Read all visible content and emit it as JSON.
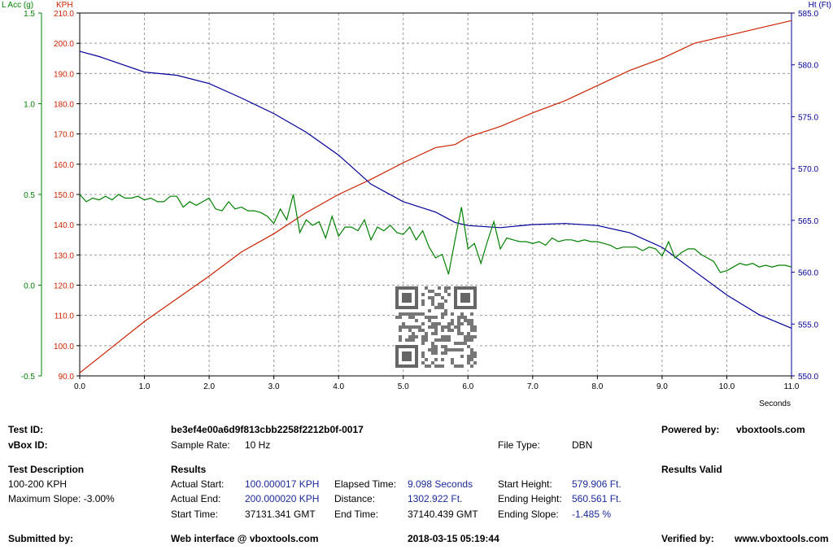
{
  "colors": {
    "speed": "#cc2200",
    "height": "#000099",
    "lacc": "#008000",
    "grid": "#999999"
  },
  "chart_data": {
    "type": "line",
    "x_unit": "Seconds",
    "xlim": [
      0,
      11
    ],
    "x_ticks": [
      "0.0",
      "1.0",
      "2.0",
      "3.0",
      "4.0",
      "5.0",
      "6.0",
      "7.0",
      "8.0",
      "9.0",
      "10.0",
      "11.0"
    ],
    "axes": {
      "lacc": {
        "label": "L Acc (g)",
        "ylim": [
          -0.5,
          1.5
        ],
        "ticks": [
          "1.5",
          "1.0",
          "0.5",
          "0.0",
          "-0.5"
        ],
        "tick_values": [
          1.5,
          1.0,
          0.5,
          0.0,
          -0.5
        ]
      },
      "speed": {
        "label": "KPH",
        "ylim": [
          90,
          210
        ],
        "ticks": [
          "210.0",
          "200.0",
          "190.0",
          "180.0",
          "170.0",
          "160.0",
          "150.0",
          "140.0",
          "130.0",
          "120.0",
          "110.0",
          "100.0",
          "90.0"
        ],
        "tick_values": [
          210,
          200,
          190,
          180,
          170,
          160,
          150,
          140,
          130,
          120,
          110,
          100,
          90
        ]
      },
      "height": {
        "label": "Ht (Ft)",
        "ylim": [
          550,
          585
        ],
        "ticks": [
          "585.0",
          "580.0",
          "575.0",
          "570.0",
          "565.0",
          "560.0",
          "555.0",
          "550.0"
        ],
        "tick_values": [
          585,
          580,
          575,
          570,
          565,
          560,
          555,
          550
        ]
      }
    },
    "grid": true,
    "series": [
      {
        "name": "KPH",
        "axis": "speed",
        "color_key": "speed",
        "x": [
          0,
          0.5,
          1.0,
          1.5,
          2.0,
          2.5,
          3.0,
          3.5,
          4.0,
          4.5,
          5.0,
          5.5,
          5.8,
          6.0,
          6.5,
          7.0,
          7.5,
          8.0,
          8.5,
          9.0,
          9.5,
          10.0,
          10.5,
          11.0
        ],
        "y": [
          91,
          99.5,
          108,
          115.5,
          123,
          131,
          137,
          144,
          150,
          155,
          160.5,
          165.5,
          166.5,
          169,
          172.5,
          177,
          181,
          186,
          191,
          195,
          200,
          202.5,
          205,
          207.5
        ]
      },
      {
        "name": "Ht (Ft)",
        "axis": "height",
        "color_key": "height",
        "x": [
          0,
          0.3,
          1.0,
          1.5,
          2.0,
          2.5,
          3.0,
          3.5,
          4.0,
          4.5,
          5.0,
          5.5,
          5.8,
          6.0,
          6.5,
          7.0,
          7.5,
          8.0,
          8.5,
          9.0,
          9.5,
          10.0,
          10.5,
          11.0
        ],
        "y": [
          581.3,
          580.8,
          579.3,
          579.0,
          578.2,
          576.8,
          575.3,
          573.5,
          571.3,
          568.5,
          566.8,
          565.8,
          564.8,
          564.5,
          564.3,
          564.6,
          564.7,
          564.5,
          563.8,
          562.4,
          560.1,
          557.8,
          555.9,
          554.6
        ]
      },
      {
        "name": "L Acc (g)",
        "axis": "lacc",
        "color_key": "lacc",
        "x": [
          0,
          0.1,
          0.2,
          0.3,
          0.4,
          0.5,
          0.6,
          0.7,
          0.8,
          0.9,
          1.0,
          1.1,
          1.2,
          1.3,
          1.4,
          1.5,
          1.6,
          1.7,
          1.8,
          1.9,
          2.0,
          2.1,
          2.2,
          2.3,
          2.4,
          2.5,
          2.6,
          2.7,
          2.8,
          2.9,
          3.0,
          3.1,
          3.2,
          3.3,
          3.4,
          3.5,
          3.6,
          3.7,
          3.8,
          3.9,
          4.0,
          4.1,
          4.2,
          4.3,
          4.4,
          4.5,
          4.6,
          4.7,
          4.8,
          4.9,
          5.0,
          5.1,
          5.2,
          5.3,
          5.4,
          5.5,
          5.6,
          5.7,
          5.8,
          5.9,
          6.0,
          6.1,
          6.2,
          6.3,
          6.4,
          6.5,
          6.6,
          6.7,
          6.8,
          6.9,
          7.0,
          7.1,
          7.2,
          7.3,
          7.4,
          7.5,
          7.6,
          7.7,
          7.8,
          7.9,
          8.0,
          8.1,
          8.2,
          8.3,
          8.4,
          8.5,
          8.6,
          8.7,
          8.8,
          8.9,
          9.0,
          9.1,
          9.2,
          9.3,
          9.4,
          9.5,
          9.6,
          9.7,
          9.8,
          9.9,
          10.0,
          10.1,
          10.2,
          10.3,
          10.4,
          10.5,
          10.6,
          10.7,
          10.8,
          10.9,
          11.0
        ],
        "y": [
          0.5,
          0.46,
          0.48,
          0.47,
          0.49,
          0.47,
          0.5,
          0.48,
          0.48,
          0.49,
          0.47,
          0.48,
          0.46,
          0.46,
          0.49,
          0.49,
          0.43,
          0.46,
          0.44,
          0.46,
          0.48,
          0.42,
          0.41,
          0.46,
          0.42,
          0.43,
          0.41,
          0.41,
          0.4,
          0.38,
          0.34,
          0.42,
          0.36,
          0.5,
          0.29,
          0.36,
          0.33,
          0.35,
          0.26,
          0.38,
          0.27,
          0.32,
          0.32,
          0.3,
          0.36,
          0.25,
          0.32,
          0.3,
          0.33,
          0.29,
          0.28,
          0.32,
          0.25,
          0.3,
          0.21,
          0.15,
          0.17,
          0.06,
          0.25,
          0.43,
          0.2,
          0.23,
          0.12,
          0.24,
          0.35,
          0.2,
          0.26,
          0.25,
          0.24,
          0.24,
          0.23,
          0.24,
          0.22,
          0.26,
          0.24,
          0.25,
          0.25,
          0.24,
          0.25,
          0.24,
          0.24,
          0.23,
          0.22,
          0.2,
          0.21,
          0.21,
          0.21,
          0.19,
          0.21,
          0.2,
          0.16,
          0.24,
          0.15,
          0.18,
          0.2,
          0.2,
          0.17,
          0.15,
          0.13,
          0.07,
          0.08,
          0.1,
          0.12,
          0.11,
          0.12,
          0.1,
          0.11,
          0.1,
          0.11,
          0.11,
          0.1
        ]
      }
    ]
  },
  "info": {
    "test_id_label": "Test ID:",
    "test_id_value": "be3ef4e00a6d9f813cbb2258f2212b0f-0017",
    "powered_label": "Powered by:",
    "powered_value": "vboxtools.com",
    "vbox_id_label": "vBox ID:",
    "sample_rate_label": "Sample Rate:",
    "sample_rate_value": "10 Hz",
    "file_type_label": "File Type:",
    "file_type_value": "DBN",
    "test_desc_label": "Test Description",
    "results_label": "Results",
    "results_valid": "Results Valid",
    "test_desc_1": "100-200 KPH",
    "test_desc_2": "Maximum Slope:  -3.00%",
    "actual_start_label": "Actual Start:",
    "actual_start_value": "100.000017 KPH",
    "elapsed_label": "Elapsed Time:",
    "elapsed_value": "9.098 Seconds",
    "start_height_label": "Start Height:",
    "start_height_value": "579.906 Ft.",
    "actual_end_label": "Actual End:",
    "actual_end_value": "200.000020 KPH",
    "distance_label": "Distance:",
    "distance_value": "1302.922 Ft.",
    "ending_height_label": "Ending Height:",
    "ending_height_value": "560.561 Ft.",
    "start_time_label": "Start Time:",
    "start_time_value": "37131.341 GMT",
    "end_time_label": "End Time:",
    "end_time_value": "37140.439 GMT",
    "ending_slope_label": "Ending Slope:",
    "ending_slope_value": "-1.485 %",
    "submitted_label": "Submitted by:",
    "web_interface": "Web interface @ vboxtools.com",
    "date": "2018-03-15 05:19:44",
    "verified_label": "Verified by:",
    "verified_value": "www.vboxtools.com"
  },
  "qr_code": "QR code"
}
